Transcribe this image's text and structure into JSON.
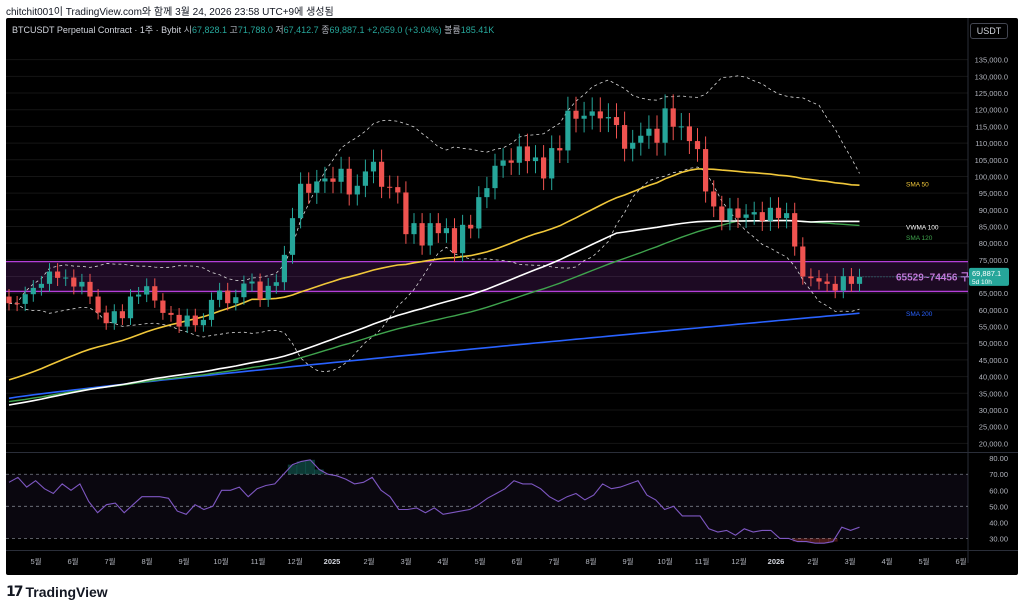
{
  "caption": "chitchit001이 TradingView.com와 함께 3월 24, 2026 23:58 UTC+9에 생성됨",
  "legend": {
    "symbol": "BTCUSDT Perpetual Contract · 1주 · Bybit",
    "open_label": "시",
    "open": "67,828.1",
    "high_label": "고",
    "high": "71,788.0",
    "low_label": "저",
    "low": "67,412.7",
    "close_label": "종",
    "close": "69,887.1",
    "change": "+2,059.0 (+3.04%)",
    "volume_label": "볼륨",
    "volume": "185.41K"
  },
  "currency": "USDT",
  "brand": "TradingView",
  "colors": {
    "up": "#26a69a",
    "down": "#ef5350",
    "sma50": "#f0c73a",
    "vwma100": "#ffffff",
    "sma120": "#3fa34d",
    "sma200": "#2962ff",
    "zone": "#b43fd8",
    "rsi": "#7e57c2"
  },
  "chart_data": [
    {
      "type": "candlestick",
      "ylim": [
        18000,
        140000
      ],
      "y_ticks": [
        "135,000.0",
        "130,000.0",
        "125,000.0",
        "120,000.0",
        "115,000.0",
        "110,000.0",
        "105,000.0",
        "100,000.0",
        "95,000.0",
        "90,000.0",
        "85,000.0",
        "80,000.0",
        "75,000.0",
        "70,000.0",
        "65,000.0",
        "60,000.0",
        "55,000.0",
        "50,000.0",
        "45,000.0",
        "40,000.0",
        "35,000.0",
        "30,000.0",
        "25,000.0",
        "20,000.0"
      ],
      "x_ticks": [
        "5월",
        "6월",
        "7월",
        "8월",
        "9월",
        "10월",
        "11월",
        "12월",
        "2025",
        "2월",
        "3월",
        "4월",
        "5월",
        "6월",
        "7월",
        "8월",
        "9월",
        "10월",
        "11월",
        "12월",
        "2026",
        "2월",
        "3월",
        "4월",
        "5월",
        "6월"
      ],
      "closes": [
        62000,
        61800,
        64700,
        66600,
        67800,
        71500,
        69600,
        69700,
        67000,
        68400,
        64000,
        59200,
        56000,
        59600,
        57500,
        64000,
        64600,
        67100,
        62800,
        59100,
        58500,
        55000,
        58300,
        55400,
        57000,
        63000,
        65800,
        62000,
        63800,
        67900,
        68500,
        63100,
        67200,
        68300,
        76500,
        87500,
        97800,
        95100,
        98500,
        99400,
        98400,
        102300,
        94600,
        97200,
        101500,
        104400,
        96900,
        96800,
        95200,
        82700,
        86000,
        79300,
        86000,
        83000,
        84500,
        77000,
        85500,
        84400,
        93800,
        96500,
        103200,
        104800,
        104100,
        109000,
        104600,
        105700,
        99400,
        108500,
        107800,
        119700,
        117300,
        118200,
        119500,
        117400,
        117800,
        115400,
        108300,
        110100,
        112200,
        114300,
        110100,
        120400,
        114900,
        115000,
        110600,
        108200,
        95500,
        91000,
        86900,
        90400,
        87600,
        88600,
        89300,
        86700,
        90600,
        87500,
        89000,
        79000,
        70000,
        69500,
        68500,
        67800,
        65800,
        70100,
        67800,
        69887.1
      ],
      "zone": {
        "low": 65529,
        "high": 74456,
        "label": "65529~74456 구간"
      },
      "last_price_label": "69,887.1",
      "last_price_time": "5d 10h",
      "series": [
        {
          "name": "SMA 50",
          "label_value": 97900
        },
        {
          "name": "VWMA 100",
          "label_value": 85000
        },
        {
          "name": "SMA 120",
          "label_value": 81800
        },
        {
          "name": "SMA 200",
          "label_value": 59000
        }
      ]
    },
    {
      "type": "line",
      "ylim": [
        24,
        82
      ],
      "y_ticks": [
        "80.00",
        "70.00",
        "60.00",
        "50.00",
        "40.00",
        "30.00"
      ],
      "levels": [
        70,
        50,
        30
      ],
      "values": [
        65,
        68,
        62,
        66,
        61,
        58,
        64,
        60,
        64,
        53,
        46,
        51,
        52,
        46,
        51,
        56,
        56,
        56,
        55,
        47,
        45,
        51,
        48,
        50,
        60,
        60,
        62,
        56,
        61,
        63,
        64,
        70,
        76,
        78,
        79,
        73,
        70,
        69,
        67,
        64,
        65,
        68,
        60,
        56,
        48,
        48,
        49,
        46,
        49,
        45,
        46,
        47,
        48,
        51,
        55,
        58,
        61,
        66,
        64,
        64,
        61,
        56,
        53,
        56,
        58,
        54,
        57,
        64,
        61,
        62,
        64,
        66,
        57,
        54,
        48,
        50,
        44,
        44,
        44,
        36,
        34,
        35,
        32,
        36,
        34,
        35,
        35,
        30,
        30,
        28,
        28,
        27,
        27,
        28,
        37,
        35,
        37
      ]
    }
  ]
}
